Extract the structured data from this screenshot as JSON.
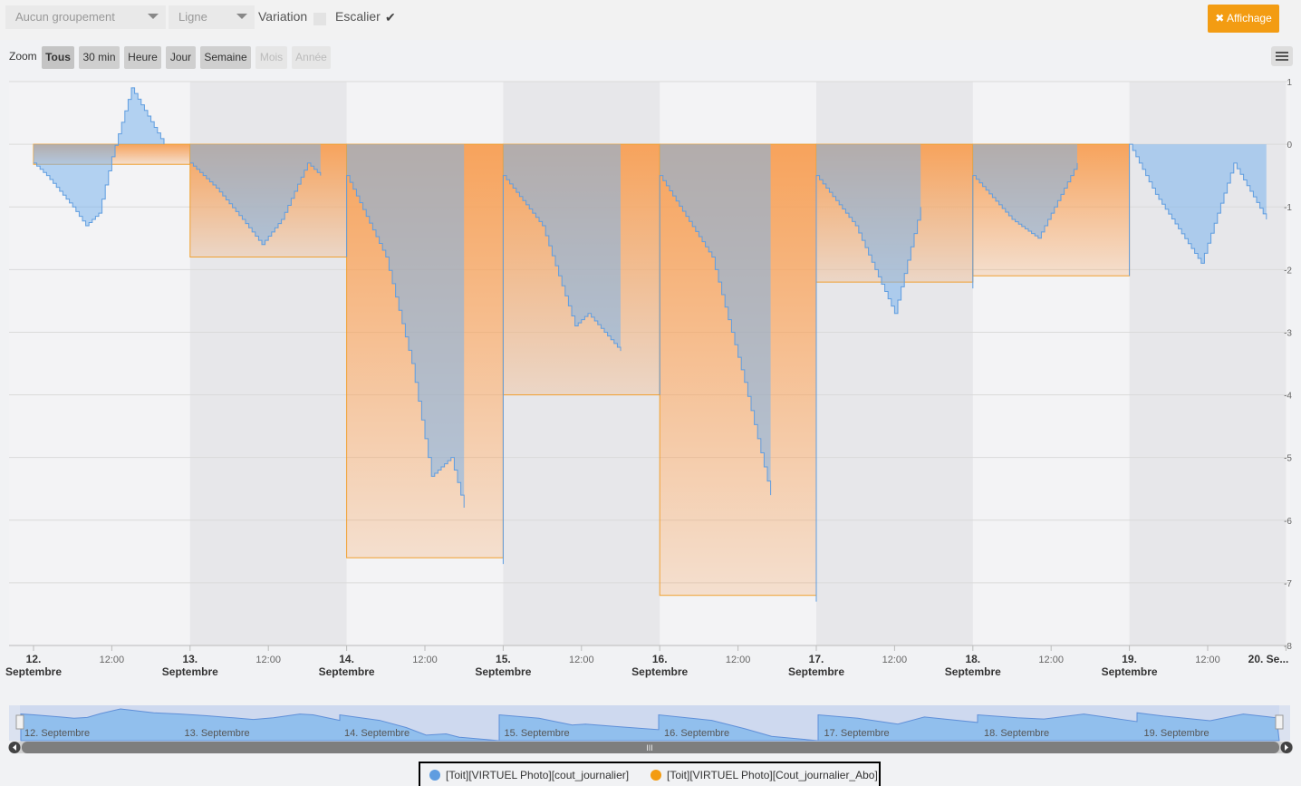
{
  "toolbar": {
    "grouping": "Aucun groupement",
    "chart_type": "Ligne",
    "variation_label": "Variation",
    "escalier_label": "Escalier",
    "escalier_check": "✔",
    "affichage_label": "✖ Affichage"
  },
  "zoom": {
    "label": "Zoom",
    "buttons": [
      "Tous",
      "30 min",
      "Heure",
      "Jour",
      "Semaine",
      "Mois",
      "Année"
    ]
  },
  "navigator": {
    "labels": [
      "12. Septembre",
      "13. Septembre",
      "14. Septembre",
      "15. Septembre",
      "16. Septembre",
      "17. Septembre",
      "18. Septembre",
      "19. Septembre"
    ],
    "scroll_grip": "III"
  },
  "colors": {
    "blue": "#7cb5ec",
    "blue_line": "#5f9de0",
    "orange": "#f7a35c",
    "orange_line": "#f0a030",
    "accent": "#f39c12"
  },
  "chart_data": {
    "type": "area",
    "step": true,
    "grid": true,
    "legend_position": "bottom-center",
    "ylim": [
      -8,
      1
    ],
    "yticks": [
      "1",
      "0",
      "-1",
      "-2",
      "-3",
      "-4",
      "-5",
      "-6",
      "-7",
      "-8"
    ],
    "xticks": [
      {
        "main": "12.",
        "sub": "Septembre"
      },
      {
        "main": "12:00",
        "sub": ""
      },
      {
        "main": "13.",
        "sub": "Septembre"
      },
      {
        "main": "12:00",
        "sub": ""
      },
      {
        "main": "14.",
        "sub": "Septembre"
      },
      {
        "main": "12:00",
        "sub": ""
      },
      {
        "main": "15.",
        "sub": "Septembre"
      },
      {
        "main": "12:00",
        "sub": ""
      },
      {
        "main": "16.",
        "sub": "Septembre"
      },
      {
        "main": "12:00",
        "sub": ""
      },
      {
        "main": "17.",
        "sub": "Septembre"
      },
      {
        "main": "12:00",
        "sub": ""
      },
      {
        "main": "18.",
        "sub": "Septembre"
      },
      {
        "main": "12:00",
        "sub": ""
      },
      {
        "main": "19.",
        "sub": "Septembre"
      },
      {
        "main": "12:00",
        "sub": ""
      },
      {
        "main": "20. Se...",
        "sub": ""
      }
    ],
    "x_domain": [
      "12 Sep 00:00",
      "20 Sep 09:00"
    ],
    "series": [
      {
        "name": "[Toit][VIRTUEL Photo][cout_journalier]",
        "color": "#7cb5ec",
        "points": [
          [
            "12 Sep 00:00",
            -0.3
          ],
          [
            "12 Sep 02:00",
            -0.5
          ],
          [
            "12 Sep 06:00",
            -1.0
          ],
          [
            "12 Sep 08:00",
            -1.3
          ],
          [
            "12 Sep 10:00",
            -1.1
          ],
          [
            "12 Sep 12:00",
            -0.2
          ],
          [
            "12 Sep 15:00",
            0.9
          ],
          [
            "12 Sep 20:00",
            0.0
          ],
          [
            "13 Sep 00:00",
            -0.3
          ],
          [
            "13 Sep 04:00",
            -0.7
          ],
          [
            "13 Sep 08:00",
            -1.2
          ],
          [
            "13 Sep 11:00",
            -1.6
          ],
          [
            "13 Sep 14:00",
            -1.2
          ],
          [
            "13 Sep 18:00",
            -0.3
          ],
          [
            "13 Sep 20:00",
            -0.5
          ],
          [
            "13 Sep 24:00",
            -1.8
          ],
          [
            "14 Sep 00:00",
            -0.5
          ],
          [
            "14 Sep 06:00",
            -1.8
          ],
          [
            "14 Sep 10:00",
            -3.5
          ],
          [
            "14 Sep 13:00",
            -5.3
          ],
          [
            "14 Sep 16:00",
            -5.0
          ],
          [
            "14 Sep 18:00",
            -5.8
          ],
          [
            "14 Sep 24:00",
            -6.7
          ],
          [
            "15 Sep 00:00",
            -0.5
          ],
          [
            "15 Sep 06:00",
            -1.3
          ],
          [
            "15 Sep 11:00",
            -2.9
          ],
          [
            "15 Sep 13:00",
            -2.7
          ],
          [
            "15 Sep 18:00",
            -3.3
          ],
          [
            "15 Sep 24:00",
            -4.0
          ],
          [
            "16 Sep 00:00",
            -0.5
          ],
          [
            "16 Sep 08:00",
            -1.8
          ],
          [
            "16 Sep 13:00",
            -3.8
          ],
          [
            "16 Sep 17:00",
            -5.6
          ],
          [
            "16 Sep 24:00",
            -7.3
          ],
          [
            "17 Sep 00:00",
            -0.5
          ],
          [
            "17 Sep 06:00",
            -1.3
          ],
          [
            "17 Sep 12:00",
            -2.7
          ],
          [
            "17 Sep 16:00",
            -1.0
          ],
          [
            "17 Sep 24:00",
            -2.3
          ],
          [
            "18 Sep 00:00",
            -0.5
          ],
          [
            "18 Sep 06:00",
            -1.2
          ],
          [
            "18 Sep 10:00",
            -1.5
          ],
          [
            "18 Sep 16:00",
            -0.3
          ],
          [
            "18 Sep 24:00",
            -2.1
          ],
          [
            "19 Sep 00:00",
            0.0
          ],
          [
            "19 Sep 04:00",
            -0.8
          ],
          [
            "19 Sep 11:00",
            -1.9
          ],
          [
            "19 Sep 16:00",
            -0.3
          ],
          [
            "19 Sep 21:00",
            -1.2
          ]
        ]
      },
      {
        "name": "[Toit][VIRTUEL Photo][Cout_journalier_Abo]",
        "color": "#f7a35c",
        "daily_values": [
          {
            "day": "12 Sep",
            "value": -0.32
          },
          {
            "day": "13 Sep",
            "value": -1.8
          },
          {
            "day": "14 Sep",
            "value": -6.6
          },
          {
            "day": "15 Sep",
            "value": -4.0
          },
          {
            "day": "16 Sep",
            "value": -7.2
          },
          {
            "day": "17 Sep",
            "value": -2.2
          },
          {
            "day": "18 Sep",
            "value": -2.1
          }
        ]
      }
    ]
  }
}
